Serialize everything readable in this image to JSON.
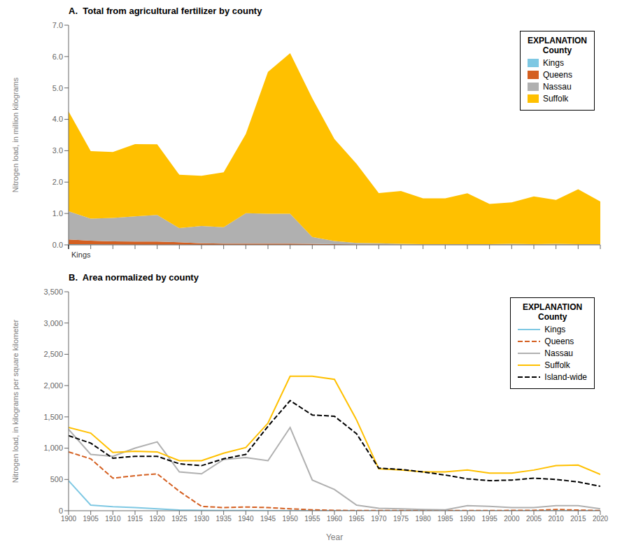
{
  "chart_data": [
    {
      "type": "area",
      "title": "A.  Total from agricultural fertilizer by county",
      "y_label": "Nitrogen load, in million kilograms",
      "x": [
        1900,
        1905,
        1910,
        1915,
        1920,
        1925,
        1930,
        1935,
        1940,
        1945,
        1950,
        1955,
        1960,
        1965,
        1970,
        1975,
        1980,
        1985,
        1990,
        1995,
        2000,
        2005,
        2010,
        2015,
        2020
      ],
      "xlim": [
        1900,
        2020
      ],
      "xticks": [
        1900,
        1905,
        1910,
        1915,
        1920,
        1925,
        1930,
        1935,
        1940,
        1945,
        1950,
        1955,
        1960,
        1965,
        1970,
        1975,
        1980,
        1985,
        1990,
        1995,
        2000,
        2005,
        2010,
        2015,
        2020
      ],
      "ylim": [
        0,
        7.0
      ],
      "yticks": [
        {
          "value": 0.0,
          "label": "0.0"
        },
        {
          "value": 1.0,
          "label": "1.0"
        },
        {
          "value": 2.0,
          "label": "2.0"
        },
        {
          "value": 3.0,
          "label": "3.0"
        },
        {
          "value": 4.0,
          "label": "4.0"
        },
        {
          "value": 5.0,
          "label": "5.0"
        },
        {
          "value": 6.0,
          "label": "6.0"
        },
        {
          "value": 7.0,
          "label": "7.0"
        }
      ],
      "stacked": true,
      "grid": false,
      "legend": "upper right",
      "legend_title": "EXPLANATION\nCounty",
      "tick_labels": "y",
      "annotations": [
        {
          "text": "Kings",
          "x": 1900,
          "y": 0
        }
      ],
      "series": [
        {
          "name": "Kings",
          "color": "#7ec8e3",
          "values": [
            0.02,
            0.015,
            0.01,
            0.008,
            0.005,
            0.003,
            0.002,
            0.001,
            0.001,
            0.001,
            0.001,
            0.001,
            0.001,
            0.001,
            0.001,
            0.001,
            0.001,
            0.001,
            0.001,
            0.001,
            0.001,
            0.001,
            0.001,
            0.001,
            0.001
          ]
        },
        {
          "name": "Queens",
          "color": "#d45f20",
          "values": [
            0.15,
            0.12,
            0.1,
            0.1,
            0.1,
            0.08,
            0.05,
            0.04,
            0.04,
            0.04,
            0.04,
            0.03,
            0.02,
            0.01,
            0.01,
            0.005,
            0.003,
            0.003,
            0.003,
            0.003,
            0.003,
            0.003,
            0.003,
            0.003,
            0.003
          ]
        },
        {
          "name": "Nassau",
          "color": "#b0b0b0",
          "values": [
            0.9,
            0.7,
            0.75,
            0.8,
            0.85,
            0.45,
            0.55,
            0.52,
            0.97,
            0.95,
            0.95,
            0.22,
            0.1,
            0.05,
            0.04,
            0.03,
            0.02,
            0.02,
            0.02,
            0.02,
            0.03,
            0.02,
            0.03,
            0.02,
            0.02
          ]
        },
        {
          "name": "Suffolk",
          "color": "#ffc000",
          "values": [
            3.18,
            2.15,
            2.1,
            2.3,
            2.25,
            1.7,
            1.6,
            1.75,
            2.52,
            4.52,
            5.12,
            4.42,
            3.25,
            2.52,
            1.6,
            1.68,
            1.46,
            1.46,
            1.62,
            1.28,
            1.32,
            1.52,
            1.4,
            1.75,
            1.36
          ]
        }
      ]
    },
    {
      "type": "line",
      "title": "B.  Area normalized by county",
      "x_label": "Year",
      "y_label": "Nitrogen load, in kilograms per square kilometer",
      "x": [
        1900,
        1905,
        1910,
        1915,
        1920,
        1925,
        1930,
        1935,
        1940,
        1945,
        1950,
        1955,
        1960,
        1965,
        1970,
        1975,
        1980,
        1985,
        1990,
        1995,
        2000,
        2005,
        2010,
        2015,
        2020
      ],
      "xlim": [
        1900,
        2020
      ],
      "xticks": [
        1900,
        1905,
        1910,
        1915,
        1920,
        1925,
        1930,
        1935,
        1940,
        1945,
        1950,
        1955,
        1960,
        1965,
        1970,
        1975,
        1980,
        1985,
        1990,
        1995,
        2000,
        2005,
        2010,
        2015,
        2020
      ],
      "ylim": [
        0,
        3500
      ],
      "yticks": [
        0,
        500,
        {
          "value": 1000,
          "label": "1,000"
        },
        {
          "value": 1500,
          "label": "1,500"
        },
        {
          "value": 2000,
          "label": "2,000"
        },
        {
          "value": 2500,
          "label": "2,500"
        },
        {
          "value": 3000,
          "label": "3,000"
        },
        {
          "value": 3500,
          "label": "3,500"
        }
      ],
      "grid": false,
      "legend": "upper right",
      "legend_title": "EXPLANATION\nCounty",
      "series": [
        {
          "name": "Kings",
          "color": "#7ec8e3",
          "line_style": "solid",
          "values": [
            480,
            90,
            65,
            50,
            30,
            10,
            5,
            3,
            2,
            1,
            1,
            1,
            1,
            1,
            1,
            1,
            1,
            1,
            1,
            1,
            1,
            1,
            1,
            1,
            1
          ]
        },
        {
          "name": "Queens",
          "color": "#d45f20",
          "line_style": "dashed",
          "values": [
            940,
            830,
            520,
            560,
            590,
            310,
            70,
            50,
            60,
            50,
            30,
            15,
            5,
            3,
            2,
            2,
            2,
            2,
            2,
            2,
            5,
            5,
            20,
            10,
            2
          ]
        },
        {
          "name": "Nassau",
          "color": "#b0b0b0",
          "line_style": "solid",
          "values": [
            1300,
            900,
            870,
            1000,
            1100,
            620,
            590,
            820,
            850,
            800,
            1330,
            490,
            340,
            90,
            40,
            30,
            20,
            15,
            80,
            70,
            50,
            50,
            80,
            80,
            30
          ]
        },
        {
          "name": "Suffolk",
          "color": "#ffc000",
          "line_style": "solid",
          "values": [
            1330,
            1240,
            930,
            950,
            940,
            800,
            800,
            920,
            1010,
            1400,
            2150,
            2150,
            2100,
            1450,
            670,
            650,
            620,
            620,
            650,
            600,
            600,
            650,
            720,
            730,
            580
          ]
        },
        {
          "name": "Island-wide",
          "color": "#000000",
          "line_style": "dashed",
          "values": [
            1200,
            1080,
            840,
            870,
            870,
            750,
            720,
            830,
            900,
            1350,
            1760,
            1530,
            1510,
            1230,
            680,
            660,
            620,
            570,
            510,
            480,
            490,
            520,
            500,
            460,
            390
          ]
        }
      ]
    }
  ]
}
